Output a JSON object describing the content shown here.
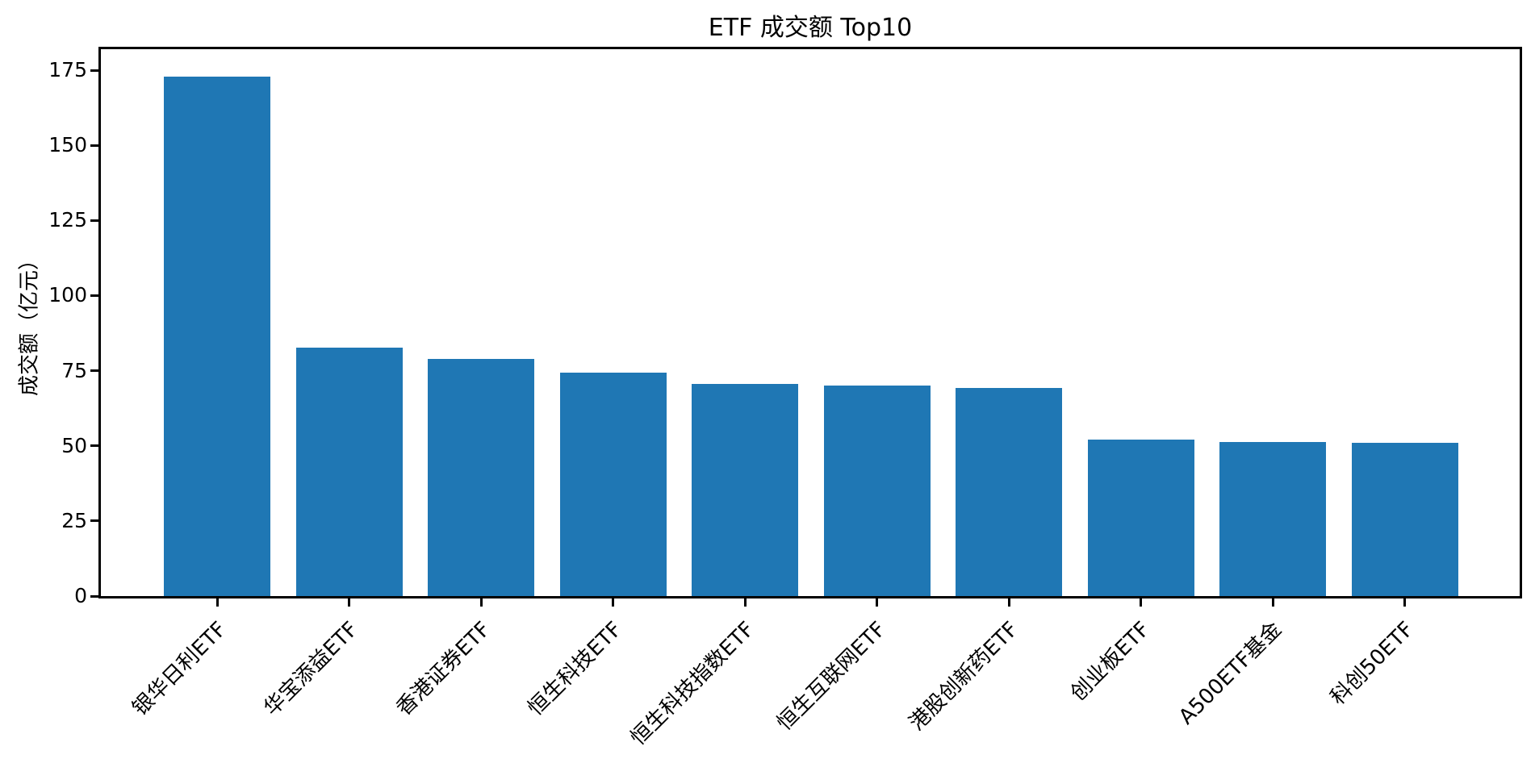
{
  "chart_data": {
    "type": "bar",
    "title": "ETF 成交额 Top10",
    "ylabel": "成交额（亿元）",
    "categories": [
      "银华日利ETF",
      "华宝添益ETF",
      "香港证券ETF",
      "恒生科技ETF",
      "恒生科技指数ETF",
      "恒生互联网ETF",
      "港股创新药ETF",
      "创业板ETF",
      "A500ETF基金",
      "科创50ETF"
    ],
    "values": [
      173.0,
      82.7,
      78.9,
      74.4,
      70.7,
      70.0,
      69.3,
      52.1,
      51.4,
      50.9
    ],
    "yticks": [
      0,
      25,
      50,
      75,
      100,
      125,
      150,
      175
    ],
    "ylim": [
      0,
      182
    ],
    "grid": false,
    "legend": false,
    "bar_color": "#1f77b4",
    "axis_color": "#000000"
  }
}
